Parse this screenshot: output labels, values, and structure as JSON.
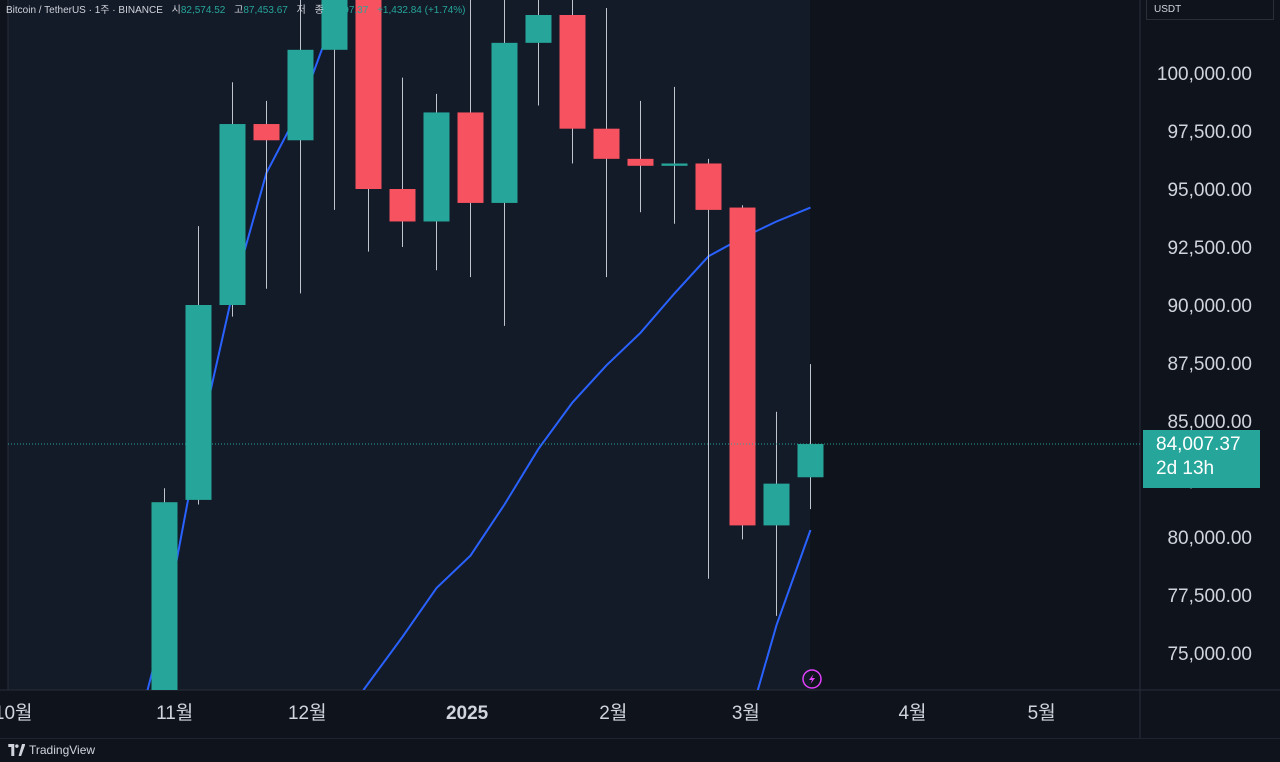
{
  "header": {
    "symbol": "Bitcoin / TetherUS",
    "interval": "1주",
    "exchange": "BINANCE",
    "open_label": "시",
    "open_value": "82,574.52",
    "high_label": "고",
    "high_value": "87,453.67",
    "low_label": "저",
    "low_value": "",
    "close_label": "종",
    "close_value": "84,007.37",
    "change": "+1,432.84 (+1.74%)"
  },
  "currency": "USDT",
  "price_tag": {
    "price": "84,007.37",
    "countdown": "2d 13h"
  },
  "brand": "TradingView",
  "colors": {
    "up": "#26a69a",
    "down": "#f7525f",
    "ma": "#2962ff",
    "bg": "#0f131b",
    "panel": "#131a28"
  },
  "chart_data": {
    "type": "candlestick",
    "y_axis_ticks": [
      "75,000.00",
      "77,500.00",
      "80,000.00",
      "82,500.00",
      "85,000.00",
      "87,500.00",
      "90,000.00",
      "92,500.00",
      "95,000.00",
      "97,500.00",
      "100,000.00"
    ],
    "y_ticks_values": [
      75000,
      77500,
      80000,
      82500,
      85000,
      87500,
      90000,
      92500,
      95000,
      97500,
      100000
    ],
    "ylim": [
      73400,
      103500
    ],
    "x_axis_labels": [
      {
        "label": "10월",
        "index": -4.45
      },
      {
        "label": "11월",
        "index": 0.3
      },
      {
        "label": "12월",
        "index": 4.2
      },
      {
        "label": "2025",
        "index": 8.9
      },
      {
        "label": "2월",
        "index": 13.2
      },
      {
        "label": "3월",
        "index": 17.1
      },
      {
        "label": "4월",
        "index": 22.0
      },
      {
        "label": "5월",
        "index": 25.8
      }
    ],
    "candles": [
      {
        "o": 69500,
        "h": 82100,
        "l": 69000,
        "c": 81500
      },
      {
        "o": 81600,
        "h": 93400,
        "l": 81400,
        "c": 90000
      },
      {
        "o": 90000,
        "h": 99600,
        "l": 89500,
        "c": 97800
      },
      {
        "o": 97800,
        "h": 98800,
        "l": 90700,
        "c": 97100
      },
      {
        "o": 97100,
        "h": 104000,
        "l": 90500,
        "c": 101000
      },
      {
        "o": 101000,
        "h": 108300,
        "l": 94100,
        "c": 106100
      },
      {
        "o": 104500,
        "h": 105600,
        "l": 92300,
        "c": 95000
      },
      {
        "o": 95000,
        "h": 99800,
        "l": 92500,
        "c": 93600
      },
      {
        "o": 93600,
        "h": 99100,
        "l": 91500,
        "c": 98300
      },
      {
        "o": 98300,
        "h": 108000,
        "l": 91200,
        "c": 94400
      },
      {
        "o": 94400,
        "h": 109600,
        "l": 89100,
        "c": 101300
      },
      {
        "o": 101300,
        "h": 105500,
        "l": 98600,
        "c": 102500
      },
      {
        "o": 102500,
        "h": 106000,
        "l": 96100,
        "c": 97600
      },
      {
        "o": 97600,
        "h": 102800,
        "l": 91200,
        "c": 96300
      },
      {
        "o": 96300,
        "h": 98800,
        "l": 94000,
        "c": 96000
      },
      {
        "o": 96000,
        "h": 99400,
        "l": 93500,
        "c": 96100
      },
      {
        "o": 96100,
        "h": 96300,
        "l": 78200,
        "c": 94100
      },
      {
        "o": 94200,
        "h": 94300,
        "l": 79900,
        "c": 80500
      },
      {
        "o": 80500,
        "h": 85400,
        "l": 76600,
        "c": 82300
      },
      {
        "o": 82574.52,
        "h": 87453.67,
        "l": 81200,
        "c": 84007.37
      }
    ],
    "ma_short": [
      {
        "i": -0.5,
        "v": 73400
      },
      {
        "i": 0,
        "v": 76200
      },
      {
        "i": 1,
        "v": 84000
      },
      {
        "i": 2,
        "v": 90500
      },
      {
        "i": 3,
        "v": 95700
      },
      {
        "i": 4,
        "v": 98500
      },
      {
        "i": 5,
        "v": 102500
      }
    ],
    "ma_long": [
      {
        "i": 5.85,
        "v": 73400
      },
      {
        "i": 7,
        "v": 75700
      },
      {
        "i": 8,
        "v": 77800
      },
      {
        "i": 9,
        "v": 79200
      },
      {
        "i": 10,
        "v": 81400
      },
      {
        "i": 11,
        "v": 83800
      },
      {
        "i": 12,
        "v": 85800
      },
      {
        "i": 13,
        "v": 87400
      },
      {
        "i": 14,
        "v": 88800
      },
      {
        "i": 15,
        "v": 90500
      },
      {
        "i": 16,
        "v": 92100
      },
      {
        "i": 17,
        "v": 92900
      },
      {
        "i": 18,
        "v": 93600
      },
      {
        "i": 19,
        "v": 94200
      }
    ],
    "ma_recent": [
      {
        "i": 17.45,
        "v": 73400
      },
      {
        "i": 18,
        "v": 76200
      },
      {
        "i": 19,
        "v": 80300
      }
    ],
    "current_price": 84007.37
  }
}
